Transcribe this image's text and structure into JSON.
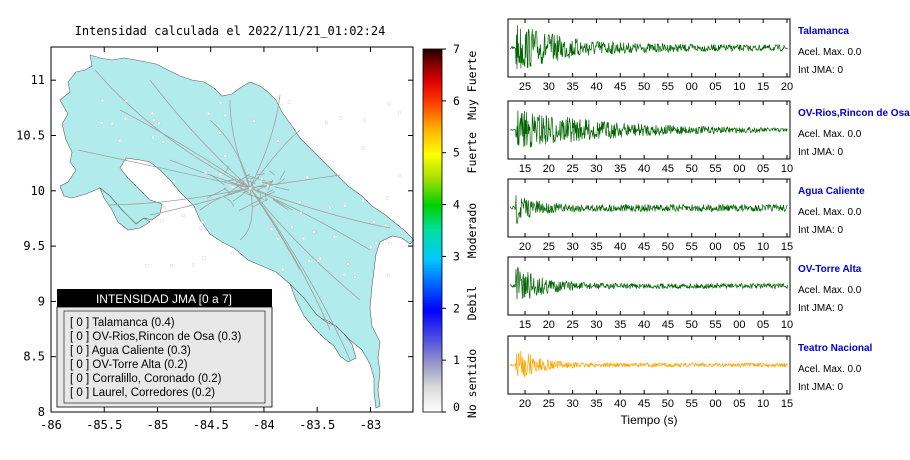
{
  "map": {
    "title": "Intensidad calculada el 2022/11/21_01:02:24",
    "x_ticks": [
      "-86",
      "-85.5",
      "-85",
      "-84.5",
      "-84",
      "-83.5",
      "-83"
    ],
    "y_ticks": [
      "11",
      "10.5",
      "10",
      "9.5",
      "9",
      "8.5",
      "8"
    ],
    "xlim": [
      -86,
      -82.6
    ],
    "ylim": [
      8,
      11.3
    ],
    "land_color": "#b2ebeb"
  },
  "colorbar": {
    "ticks": [
      "0",
      "1",
      "2",
      "3",
      "4",
      "5",
      "6",
      "7"
    ],
    "levels": [
      {
        "label": "No sentido"
      },
      {
        "label": "Debil"
      },
      {
        "label": "Moderado"
      },
      {
        "label": "Fuerte"
      },
      {
        "label": "Muy Fuerte"
      }
    ]
  },
  "legend": {
    "header": "INTENSIDAD JMA [0 a 7]",
    "items": [
      {
        "text": "[ 0 ]  Talamanca (0.4)"
      },
      {
        "text": "[ 0 ]  OV-Rios,Rincon de Osa (0.3)"
      },
      {
        "text": "[ 0 ]  Agua Caliente (0.3)"
      },
      {
        "text": "[ 0 ]  OV-Torre Alta (0.2)"
      },
      {
        "text": "[ 0 ]  Corralillo, Coronado (0.2)"
      },
      {
        "text": "[ 0 ]  Laurel, Corredores (0.2)"
      }
    ]
  },
  "chart_data": [
    {
      "type": "line",
      "title": "Talamanca",
      "x_ticks": [
        "25",
        "30",
        "35",
        "40",
        "45",
        "50",
        "55",
        "00",
        "05",
        "10",
        "15",
        "20"
      ],
      "color": "#006400",
      "series": [
        {
          "name": "Talamanca",
          "peak_amplitude": 0.9,
          "decay": 0.18,
          "noise": 0.12
        }
      ],
      "info": [
        "Acel. Max. 0.0",
        "Int JMA: 0"
      ]
    },
    {
      "type": "line",
      "title": "OV-Rios,Rincon de Osa",
      "x_ticks": [
        "15",
        "20",
        "25",
        "30",
        "35",
        "40",
        "45",
        "50",
        "55",
        "00",
        "05",
        "10"
      ],
      "color": "#006400",
      "series": [
        {
          "name": "OV-Rios,Rincon de Osa",
          "peak_amplitude": 0.8,
          "decay": 0.35,
          "noise": 0.03
        }
      ],
      "info": [
        "Acel. Max. 0.0",
        "Int JMA: 0"
      ]
    },
    {
      "type": "line",
      "title": "Agua Caliente",
      "x_ticks": [
        "20",
        "25",
        "30",
        "35",
        "40",
        "45",
        "50",
        "55",
        "00",
        "05",
        "10",
        "15"
      ],
      "color": "#006400",
      "series": [
        {
          "name": "Agua Caliente",
          "peak_amplitude": 0.55,
          "decay": 0.06,
          "noise": 0.14
        }
      ],
      "info": [
        "Acel. Max. 0.0",
        "Int JMA: 0"
      ]
    },
    {
      "type": "line",
      "title": "OV-Torre Alta",
      "x_ticks": [
        "15",
        "20",
        "25",
        "30",
        "35",
        "40",
        "45",
        "50",
        "55",
        "00",
        "05",
        "10"
      ],
      "color": "#006400",
      "series": [
        {
          "name": "OV-Torre Alta",
          "peak_amplitude": 0.75,
          "decay": 0.09,
          "noise": 0.1
        }
      ],
      "info": [
        "Acel. Max. 0.0",
        "Int JMA: 0"
      ]
    },
    {
      "type": "line",
      "title": "Teatro Nacional",
      "x_ticks": [
        "20",
        "25",
        "30",
        "35",
        "40",
        "45",
        "50",
        "55",
        "00",
        "05",
        "10",
        "15"
      ],
      "xlabel": "Tiempo (s)",
      "color": "#ffa500",
      "series": [
        {
          "name": "Teatro Nacional",
          "peak_amplitude": 0.7,
          "decay": 0.07,
          "noise": 0.08
        }
      ],
      "info": [
        "Acel. Max. 0.0",
        "Int JMA: 0"
      ]
    }
  ]
}
